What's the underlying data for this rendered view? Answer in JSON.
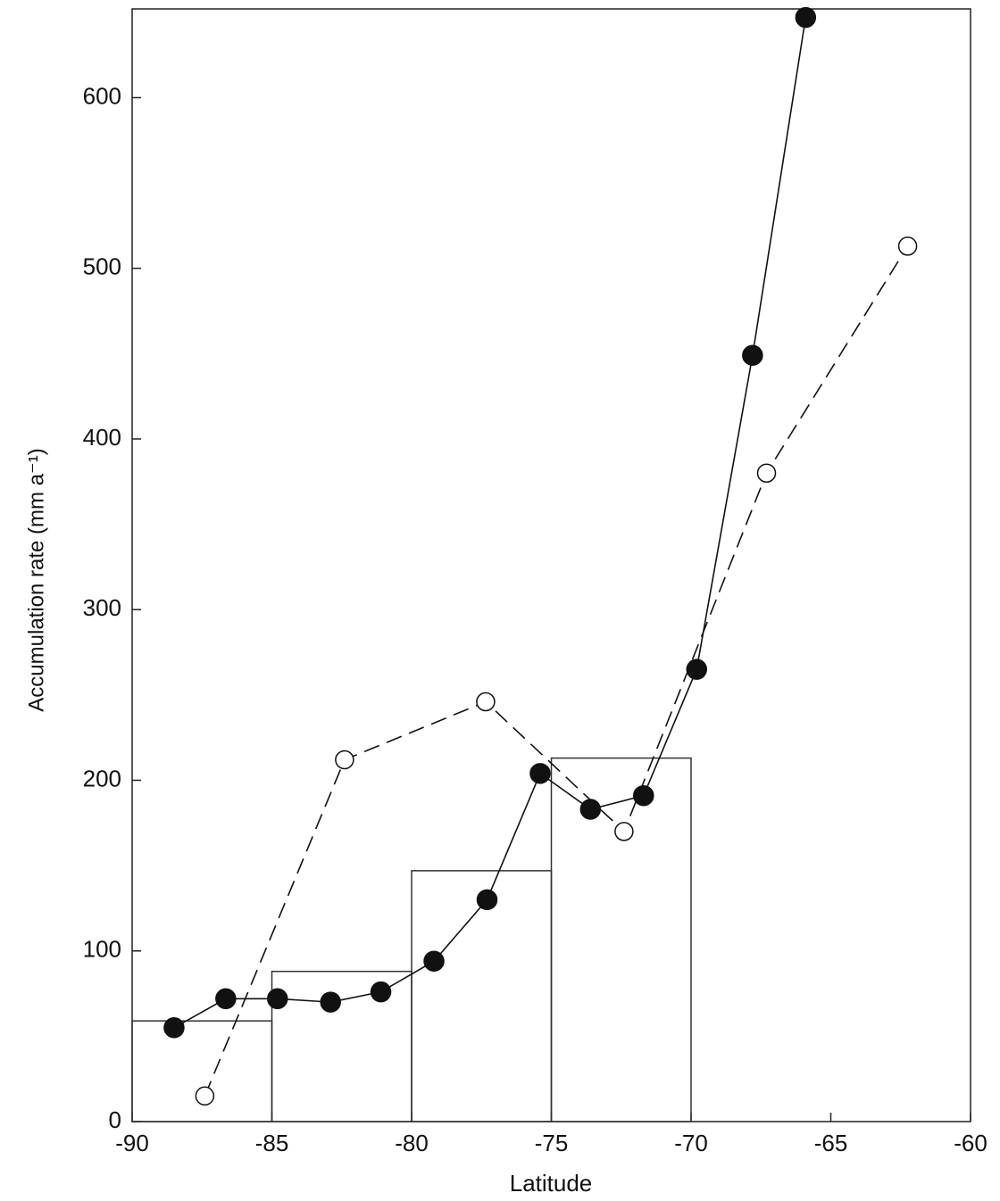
{
  "chart_data": {
    "type": "line",
    "xlabel": "Latitude",
    "ylabel": "Accumulation rate (mm a⁻¹)",
    "xlim": [
      -90,
      -60
    ],
    "ylim": [
      0,
      652
    ],
    "xticks": [
      -90,
      -85,
      -80,
      -75,
      -70,
      -65,
      -60
    ],
    "yticks": [
      0,
      100,
      200,
      300,
      400,
      500,
      600
    ],
    "histogram": {
      "bins": [
        -90,
        -85,
        -80,
        -75,
        -70
      ],
      "counts": [
        59,
        88,
        147,
        213
      ],
      "color": "#333333"
    },
    "series": [
      {
        "color": "#111111",
        "marker": "filled",
        "line_style": "solid",
        "x": [
          -88.5,
          -86.65,
          -84.8,
          -82.9,
          -81.1,
          -79.2,
          -77.3,
          -75.4,
          -73.6,
          -71.7,
          -69.8,
          -67.8,
          -65.9
        ],
        "values": [
          55,
          72,
          72,
          70,
          76,
          94,
          130,
          204,
          183,
          191,
          265,
          449,
          647
        ]
      },
      {
        "color": "#111111",
        "marker": "open",
        "line_style": "dashed",
        "x": [
          -87.4,
          -82.4,
          -77.35,
          -72.4,
          -67.3,
          -62.25
        ],
        "values": [
          15,
          212,
          246,
          170,
          380,
          513
        ]
      }
    ]
  }
}
